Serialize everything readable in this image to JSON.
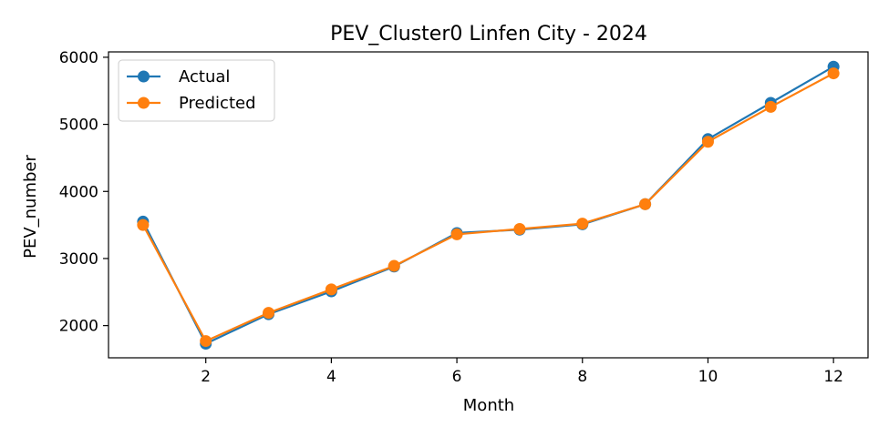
{
  "chart_data": {
    "type": "line",
    "title": "PEV_Cluster0 Linfen City - 2024",
    "xlabel": "Month",
    "ylabel": "PEV_number",
    "x": [
      1,
      2,
      3,
      4,
      5,
      6,
      7,
      8,
      9,
      10,
      11,
      12
    ],
    "xlim": [
      0.45,
      12.55
    ],
    "ylim": [
      1520,
      6080
    ],
    "xticks": [
      2,
      4,
      6,
      8,
      10,
      12
    ],
    "yticks": [
      2000,
      3000,
      4000,
      5000,
      6000
    ],
    "grid": false,
    "legend_position": "top-left",
    "series": [
      {
        "name": "Actual",
        "color": "#1f77b4",
        "marker": "circle",
        "values": [
          3550,
          1730,
          2170,
          2510,
          2880,
          3380,
          3430,
          3510,
          3810,
          4780,
          5320,
          5860
        ]
      },
      {
        "name": "Predicted",
        "color": "#ff7f0e",
        "marker": "circle",
        "values": [
          3500,
          1770,
          2190,
          2540,
          2890,
          3360,
          3440,
          3520,
          3810,
          4740,
          5260,
          5760
        ]
      }
    ]
  }
}
